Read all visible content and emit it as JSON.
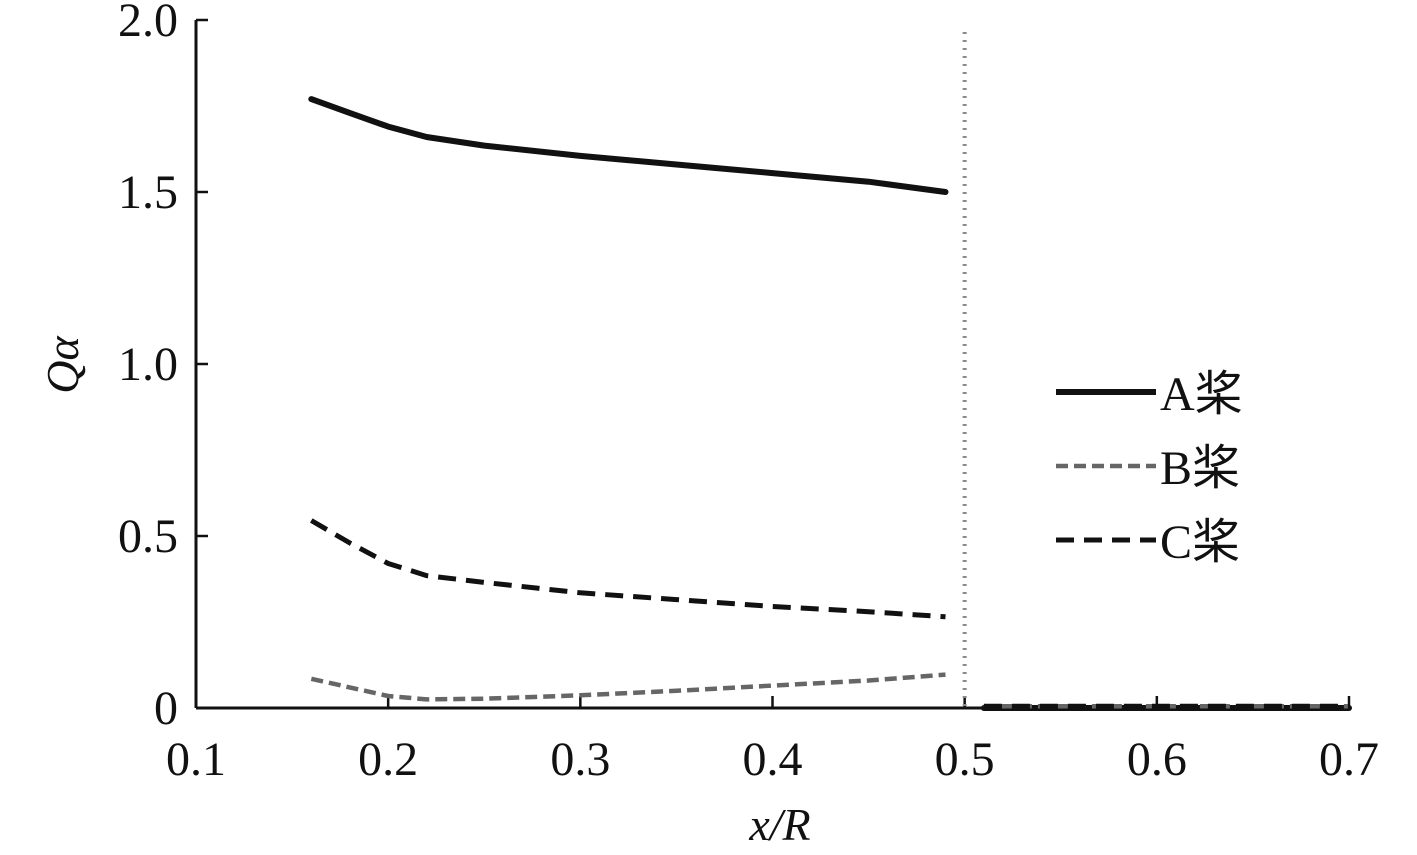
{
  "chart_data": {
    "type": "line",
    "xlabel": "x/R",
    "ylabel": "Qα",
    "xlim": [
      0.1,
      0.7
    ],
    "ylim": [
      0,
      2.0
    ],
    "x_ticks": [
      0.1,
      0.2,
      0.3,
      0.4,
      0.5,
      0.6,
      0.7
    ],
    "x_tick_labels": [
      "0.1",
      "0.2",
      "0.3",
      "0.4",
      "0.5",
      "0.6",
      "0.7"
    ],
    "y_ticks": [
      0,
      0.5,
      1.0,
      1.5,
      2.0
    ],
    "y_tick_labels": [
      "0",
      "0.5",
      "1.0",
      "1.5",
      "2.0"
    ],
    "grid": false,
    "legend_position": "right",
    "reference_line": {
      "x": 0.5,
      "style": "dotted",
      "color": "#8a8a8a"
    },
    "series": [
      {
        "name": "A桨",
        "color": "#111111",
        "style": "solid",
        "points": [
          [
            0.16,
            1.77
          ],
          [
            0.18,
            1.73
          ],
          [
            0.2,
            1.69
          ],
          [
            0.22,
            1.66
          ],
          [
            0.25,
            1.635
          ],
          [
            0.3,
            1.605
          ],
          [
            0.35,
            1.58
          ],
          [
            0.4,
            1.555
          ],
          [
            0.45,
            1.53
          ],
          [
            0.49,
            1.5
          ]
        ],
        "outer_points": [
          [
            0.51,
            0.0
          ],
          [
            0.6,
            0.0
          ],
          [
            0.7,
            0.0
          ]
        ]
      },
      {
        "name": "B桨",
        "color": "#666666",
        "style": "short-dash",
        "points": [
          [
            0.16,
            0.085
          ],
          [
            0.18,
            0.06
          ],
          [
            0.2,
            0.035
          ],
          [
            0.22,
            0.025
          ],
          [
            0.25,
            0.027
          ],
          [
            0.3,
            0.037
          ],
          [
            0.35,
            0.05
          ],
          [
            0.4,
            0.065
          ],
          [
            0.45,
            0.08
          ],
          [
            0.49,
            0.097
          ]
        ],
        "outer_points": [
          [
            0.51,
            0.005
          ],
          [
            0.6,
            0.005
          ],
          [
            0.7,
            0.005
          ]
        ]
      },
      {
        "name": "C桨",
        "color": "#111111",
        "style": "long-dash",
        "points": [
          [
            0.16,
            0.545
          ],
          [
            0.18,
            0.48
          ],
          [
            0.2,
            0.42
          ],
          [
            0.22,
            0.385
          ],
          [
            0.25,
            0.365
          ],
          [
            0.3,
            0.335
          ],
          [
            0.35,
            0.315
          ],
          [
            0.4,
            0.295
          ],
          [
            0.45,
            0.28
          ],
          [
            0.49,
            0.265
          ]
        ],
        "outer_points": [
          [
            0.51,
            0.005
          ],
          [
            0.6,
            0.005
          ],
          [
            0.7,
            0.005
          ]
        ]
      }
    ]
  }
}
